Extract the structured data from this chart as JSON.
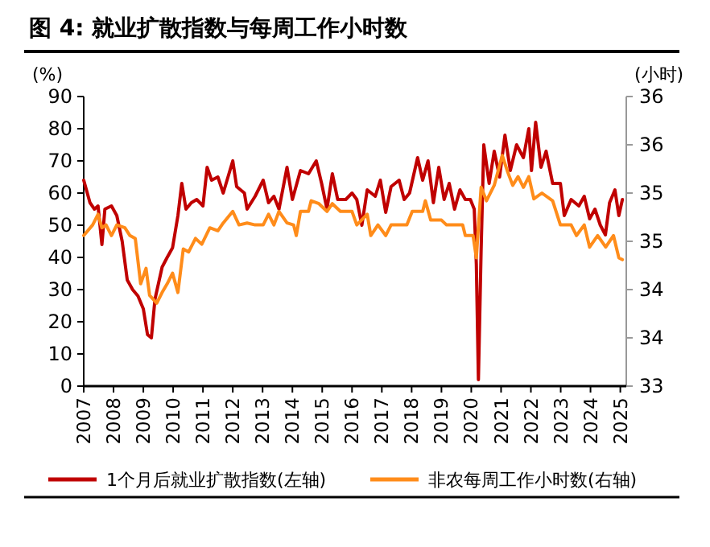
{
  "chart_data": {
    "type": "line",
    "title": "图 4: 就业扩散指数与每周工作小时数",
    "ylabel": "(%)",
    "y2label": "(小时)",
    "xlim": [
      2007,
      2025.2
    ],
    "xticks": [
      2007,
      2008,
      2009,
      2010,
      2011,
      2012,
      2013,
      2014,
      2015,
      2016,
      2017,
      2018,
      2019,
      2020,
      2021,
      2022,
      2023,
      2024,
      2025
    ],
    "ylim": [
      0,
      90
    ],
    "yticks": [
      0,
      10,
      20,
      30,
      40,
      50,
      60,
      70,
      80,
      90
    ],
    "y2lim": [
      33,
      36
    ],
    "y2ticks": [
      33,
      {
        "value": 33.5,
        "label": "34"
      },
      34,
      {
        "value": 34.5,
        "label": "35"
      },
      35,
      {
        "value": 35.5,
        "label": "36"
      },
      36
    ],
    "legend": "bottom",
    "grid": false,
    "series": [
      {
        "name": "1个月后就业扩散指数(左轴)",
        "color": "#c00000",
        "axis": "y",
        "x": [
          2007.0,
          2007.21,
          2007.36,
          2007.48,
          2007.61,
          2007.71,
          2007.93,
          2008.11,
          2008.29,
          2008.46,
          2008.64,
          2008.82,
          2009.0,
          2009.14,
          2009.27,
          2009.39,
          2009.63,
          2009.8,
          2009.98,
          2010.16,
          2010.29,
          2010.43,
          2010.61,
          2010.79,
          2011.0,
          2011.14,
          2011.29,
          2011.5,
          2011.68,
          2012.0,
          2012.13,
          2012.39,
          2012.48,
          2012.75,
          2013.02,
          2013.2,
          2013.38,
          2013.55,
          2013.82,
          2014.0,
          2014.27,
          2014.54,
          2014.8,
          2014.98,
          2015.16,
          2015.34,
          2015.52,
          2015.79,
          2016.0,
          2016.16,
          2016.33,
          2016.51,
          2016.78,
          2016.95,
          2017.13,
          2017.31,
          2017.58,
          2017.75,
          2017.93,
          2018.2,
          2018.37,
          2018.55,
          2018.73,
          2018.91,
          2019.09,
          2019.26,
          2019.44,
          2019.62,
          2019.8,
          2019.97,
          2020.1,
          2020.17,
          2020.24,
          2020.33,
          2020.42,
          2020.6,
          2020.77,
          2020.95,
          2021.13,
          2021.31,
          2021.52,
          2021.75,
          2021.93,
          2022.02,
          2022.16,
          2022.34,
          2022.51,
          2022.73,
          2022.99,
          2023.12,
          2023.35,
          2023.61,
          2023.79,
          2023.97,
          2024.15,
          2024.33,
          2024.5,
          2024.64,
          2024.82,
          2024.95,
          2025.07
        ],
        "values": [
          64,
          57,
          55,
          56,
          44,
          55,
          56,
          53,
          45,
          33,
          30,
          28,
          24,
          16,
          15,
          27,
          37,
          40,
          43,
          53,
          63,
          55,
          57,
          58,
          56,
          68,
          64,
          65,
          60,
          70,
          62,
          60,
          55,
          59,
          64,
          57,
          59,
          55,
          68,
          58,
          67,
          66,
          70,
          63,
          55,
          66,
          58,
          58,
          60,
          58,
          50,
          61,
          59,
          64,
          54,
          62,
          64,
          58,
          60,
          71,
          64,
          70,
          57,
          68,
          58,
          63,
          55,
          61,
          58,
          58,
          55,
          38,
          2,
          42,
          75,
          63,
          73,
          65,
          78,
          67,
          75,
          71,
          80,
          67,
          82,
          68,
          73,
          63,
          63,
          53,
          58,
          56,
          59,
          52,
          55,
          50,
          47,
          57,
          61,
          53,
          58
        ]
      },
      {
        "name": "非农每周工作小时数(右轴)",
        "color": "#ff8c1a",
        "axis": "y2",
        "x": [
          2007.0,
          2007.3,
          2007.48,
          2007.61,
          2007.75,
          2007.93,
          2008.11,
          2008.38,
          2008.55,
          2008.73,
          2008.91,
          2009.09,
          2009.21,
          2009.45,
          2009.63,
          2009.8,
          2009.98,
          2010.16,
          2010.34,
          2010.52,
          2010.75,
          2010.96,
          2011.23,
          2011.5,
          2011.68,
          2012.0,
          2012.21,
          2012.48,
          2012.75,
          2013.02,
          2013.2,
          2013.38,
          2013.55,
          2013.82,
          2014.04,
          2014.13,
          2014.27,
          2014.54,
          2014.63,
          2014.89,
          2015.16,
          2015.34,
          2015.61,
          2016.0,
          2016.16,
          2016.51,
          2016.63,
          2016.87,
          2017.13,
          2017.31,
          2017.84,
          2018.02,
          2018.37,
          2018.46,
          2018.64,
          2019.0,
          2019.17,
          2019.71,
          2019.8,
          2020.06,
          2020.17,
          2020.33,
          2020.51,
          2020.77,
          2021.04,
          2021.22,
          2021.39,
          2021.57,
          2021.75,
          2021.93,
          2022.1,
          2022.37,
          2022.73,
          2022.99,
          2023.35,
          2023.53,
          2023.79,
          2023.97,
          2024.24,
          2024.51,
          2024.77,
          2024.95,
          2025.07
        ],
        "values": [
          34.56,
          34.67,
          34.78,
          34.64,
          34.67,
          34.56,
          34.67,
          34.64,
          34.56,
          34.53,
          34.06,
          34.22,
          33.94,
          33.86,
          33.97,
          34.06,
          34.17,
          33.97,
          34.42,
          34.39,
          34.53,
          34.47,
          34.64,
          34.61,
          34.69,
          34.81,
          34.67,
          34.69,
          34.67,
          34.67,
          34.78,
          34.67,
          34.81,
          34.69,
          34.67,
          34.56,
          34.81,
          34.81,
          34.92,
          34.89,
          34.81,
          34.89,
          34.81,
          34.81,
          34.67,
          34.78,
          34.56,
          34.67,
          34.56,
          34.67,
          34.67,
          34.81,
          34.81,
          34.92,
          34.72,
          34.72,
          34.67,
          34.67,
          34.56,
          34.56,
          34.33,
          35.06,
          34.92,
          35.08,
          35.39,
          35.22,
          35.08,
          35.17,
          35.06,
          35.17,
          34.94,
          35.0,
          34.92,
          34.67,
          34.67,
          34.56,
          34.67,
          34.44,
          34.56,
          34.44,
          34.56,
          34.33,
          34.31
        ]
      }
    ]
  }
}
